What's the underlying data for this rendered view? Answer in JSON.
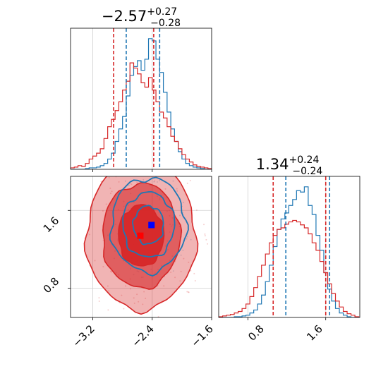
{
  "colors": {
    "blue": "#1f77b4",
    "red": "#d62728",
    "blue_marker": "#0000ff",
    "red_marker": "#ff0000",
    "grid": "#cfcfcf"
  },
  "chart_data": [
    {
      "type": "histogram",
      "panel": "top-left",
      "title": {
        "value": "−2.57",
        "sup": "+0.27",
        "sub": "−0.28"
      },
      "xlim": [
        -3.5,
        -1.6
      ],
      "grid": true,
      "series": [
        {
          "color": "#1f77b4",
          "bin_edges": [
            -3.5,
            -3.45,
            -3.4,
            -3.35,
            -3.3,
            -3.25,
            -3.2,
            -3.15,
            -3.1,
            -3.05,
            -3.0,
            -2.95,
            -2.9,
            -2.85,
            -2.8,
            -2.75,
            -2.7,
            -2.65,
            -2.6,
            -2.55,
            -2.5,
            -2.45,
            -2.4,
            -2.35,
            -2.3,
            -2.25,
            -2.2,
            -2.15,
            -2.1,
            -2.05,
            -2.0,
            -1.95,
            -1.9,
            -1.85,
            -1.8,
            -1.75,
            -1.7,
            -1.65,
            -1.6
          ],
          "counts": [
            0,
            0,
            0,
            0,
            1,
            2,
            2,
            3,
            5,
            8,
            14,
            22,
            38,
            55,
            72,
            100,
            128,
            140,
            148,
            135,
            150,
            178,
            175,
            150,
            132,
            105,
            78,
            55,
            38,
            24,
            14,
            8,
            5,
            3,
            2,
            1,
            0,
            0
          ],
          "quantiles": [
            -2.75,
            -2.3
          ]
        },
        {
          "color": "#d62728",
          "bin_edges": [
            -3.5,
            -3.45,
            -3.4,
            -3.35,
            -3.3,
            -3.25,
            -3.2,
            -3.15,
            -3.1,
            -3.05,
            -3.0,
            -2.95,
            -2.9,
            -2.85,
            -2.8,
            -2.75,
            -2.7,
            -2.65,
            -2.6,
            -2.55,
            -2.5,
            -2.45,
            -2.4,
            -2.35,
            -2.3,
            -2.25,
            -2.2,
            -2.15,
            -2.1,
            -2.05,
            -2.0,
            -1.95,
            -1.9,
            -1.85,
            -1.8,
            -1.75,
            -1.7,
            -1.65,
            -1.6
          ],
          "counts": [
            2,
            3,
            5,
            4,
            8,
            14,
            18,
            22,
            28,
            42,
            58,
            68,
            80,
            92,
            108,
            120,
            145,
            138,
            130,
            118,
            112,
            125,
            108,
            92,
            78,
            70,
            58,
            45,
            38,
            28,
            20,
            14,
            10,
            6,
            4,
            3,
            2,
            1
          ],
          "quantiles": [
            -2.92,
            -2.38
          ]
        }
      ]
    },
    {
      "type": "contour",
      "panel": "bottom-left",
      "xlim": [
        -3.5,
        -1.6
      ],
      "ylim": [
        0.5,
        1.95
      ],
      "xticks": [
        -3.2,
        -2.4,
        -1.6
      ],
      "xtick_labels": [
        "−3.2",
        "−2.4",
        "−1.6"
      ],
      "yticks": [
        0.8,
        1.6
      ],
      "ytick_labels": [
        "0.8",
        "1.6"
      ],
      "grid": true,
      "series": [
        {
          "color": "#d62728",
          "center": [
            -2.55,
            1.34
          ],
          "spread": [
            0.36,
            0.37
          ],
          "filled": true
        },
        {
          "color": "#1f77b4",
          "center": [
            -2.45,
            1.45
          ],
          "spread": [
            0.24,
            0.23
          ],
          "filled": false
        }
      ],
      "markers": [
        {
          "color": "#0000ff",
          "x": -2.41,
          "y": 1.45
        },
        {
          "color": "#ff0000",
          "x": -2.56,
          "y": 1.34
        }
      ]
    },
    {
      "type": "histogram",
      "panel": "bottom-right",
      "title": {
        "value": "1.34",
        "sup": "+0.24",
        "sub": "−0.24"
      },
      "xlim": [
        0.5,
        1.95
      ],
      "xticks": [
        0.8,
        1.6
      ],
      "xtick_labels": [
        "0.8",
        "1.6"
      ],
      "grid": true,
      "series": [
        {
          "color": "#1f77b4",
          "bin_edges": [
            0.5,
            0.54,
            0.58,
            0.62,
            0.66,
            0.7,
            0.74,
            0.78,
            0.82,
            0.86,
            0.9,
            0.94,
            0.98,
            1.02,
            1.06,
            1.1,
            1.14,
            1.18,
            1.22,
            1.26,
            1.3,
            1.34,
            1.38,
            1.42,
            1.46,
            1.5,
            1.54,
            1.58,
            1.62,
            1.66,
            1.7,
            1.74,
            1.78,
            1.82,
            1.86,
            1.9,
            1.94
          ],
          "counts": [
            0,
            0,
            0,
            0,
            1,
            1,
            2,
            3,
            6,
            10,
            18,
            30,
            48,
            70,
            95,
            118,
            132,
            140,
            150,
            158,
            170,
            168,
            175,
            150,
            138,
            110,
            90,
            60,
            38,
            22,
            12,
            6,
            3,
            1,
            0,
            0
          ],
          "quantiles": [
            1.19,
            1.64
          ]
        },
        {
          "color": "#d62728",
          "bin_edges": [
            0.5,
            0.54,
            0.58,
            0.62,
            0.66,
            0.7,
            0.74,
            0.78,
            0.82,
            0.86,
            0.9,
            0.94,
            0.98,
            1.02,
            1.06,
            1.1,
            1.14,
            1.18,
            1.22,
            1.26,
            1.3,
            1.34,
            1.38,
            1.42,
            1.46,
            1.5,
            1.54,
            1.58,
            1.62,
            1.66,
            1.7,
            1.74,
            1.78,
            1.82,
            1.86,
            1.9,
            1.94
          ],
          "counts": [
            1,
            2,
            3,
            4,
            6,
            8,
            12,
            18,
            28,
            40,
            55,
            70,
            85,
            100,
            110,
            118,
            120,
            125,
            128,
            130,
            128,
            124,
            120,
            112,
            100,
            90,
            75,
            60,
            45,
            32,
            22,
            14,
            8,
            5,
            3,
            1
          ],
          "quantiles": [
            1.06,
            1.6
          ]
        }
      ]
    }
  ]
}
